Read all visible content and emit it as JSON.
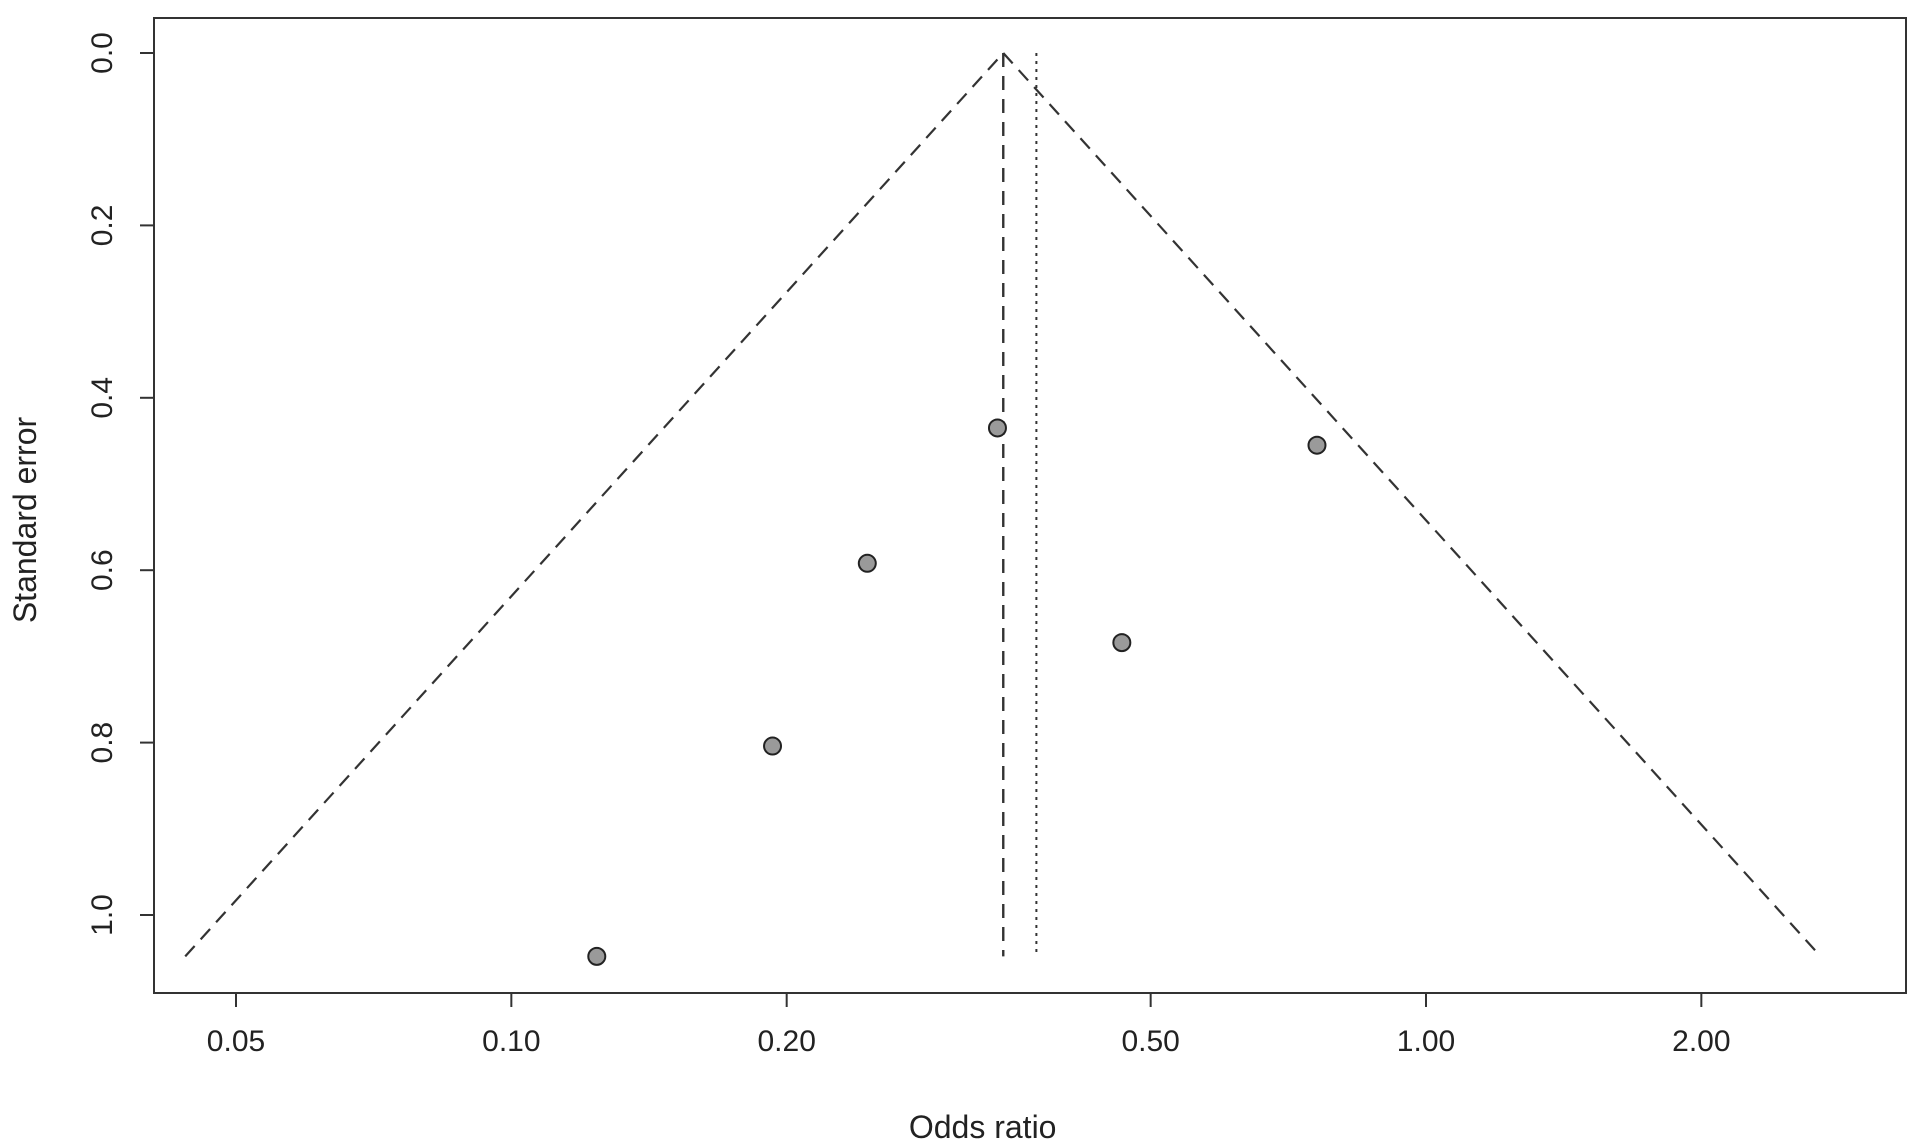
{
  "chart_data": {
    "type": "scatter",
    "subtype": "funnel-plot",
    "title": "",
    "xlabel": "Odds ratio",
    "ylabel": "Standard error",
    "x_scale": "log",
    "x_ticks": [
      0.05,
      0.1,
      0.2,
      0.5,
      1.0,
      2.0
    ],
    "x_tick_labels": [
      "0.05",
      "0.10",
      "0.20",
      "0.50",
      "1.00",
      "2.00"
    ],
    "xlim": [
      0.043,
      3.2
    ],
    "y_reversed": true,
    "y_ticks": [
      0.0,
      0.2,
      0.4,
      0.6,
      0.8,
      1.0
    ],
    "y_tick_labels": [
      "0.0",
      "0.2",
      "0.4",
      "0.6",
      "0.8",
      "1.0"
    ],
    "ylim": [
      0.0,
      1.092
    ],
    "points": [
      {
        "x": 0.34,
        "y": 0.435
      },
      {
        "x": 0.76,
        "y": 0.455
      },
      {
        "x": 0.245,
        "y": 0.592
      },
      {
        "x": 0.465,
        "y": 0.684
      },
      {
        "x": 0.193,
        "y": 0.804
      },
      {
        "x": 0.124,
        "y": 1.048
      }
    ],
    "funnel": {
      "apex_x": 0.345,
      "apex_y": 0.0,
      "base_y": 1.048,
      "base_left_x": 0.044,
      "base_right_x": 2.7
    },
    "reference_lines": [
      {
        "style": "dashed",
        "x": 0.345
      },
      {
        "style": "dotted",
        "x": 0.375
      }
    ],
    "grid": false,
    "legend": "none",
    "colors": {
      "point_fill": "#9a9a9a",
      "point_stroke": "#222222",
      "line": "#333333",
      "frame": "#333333"
    }
  }
}
